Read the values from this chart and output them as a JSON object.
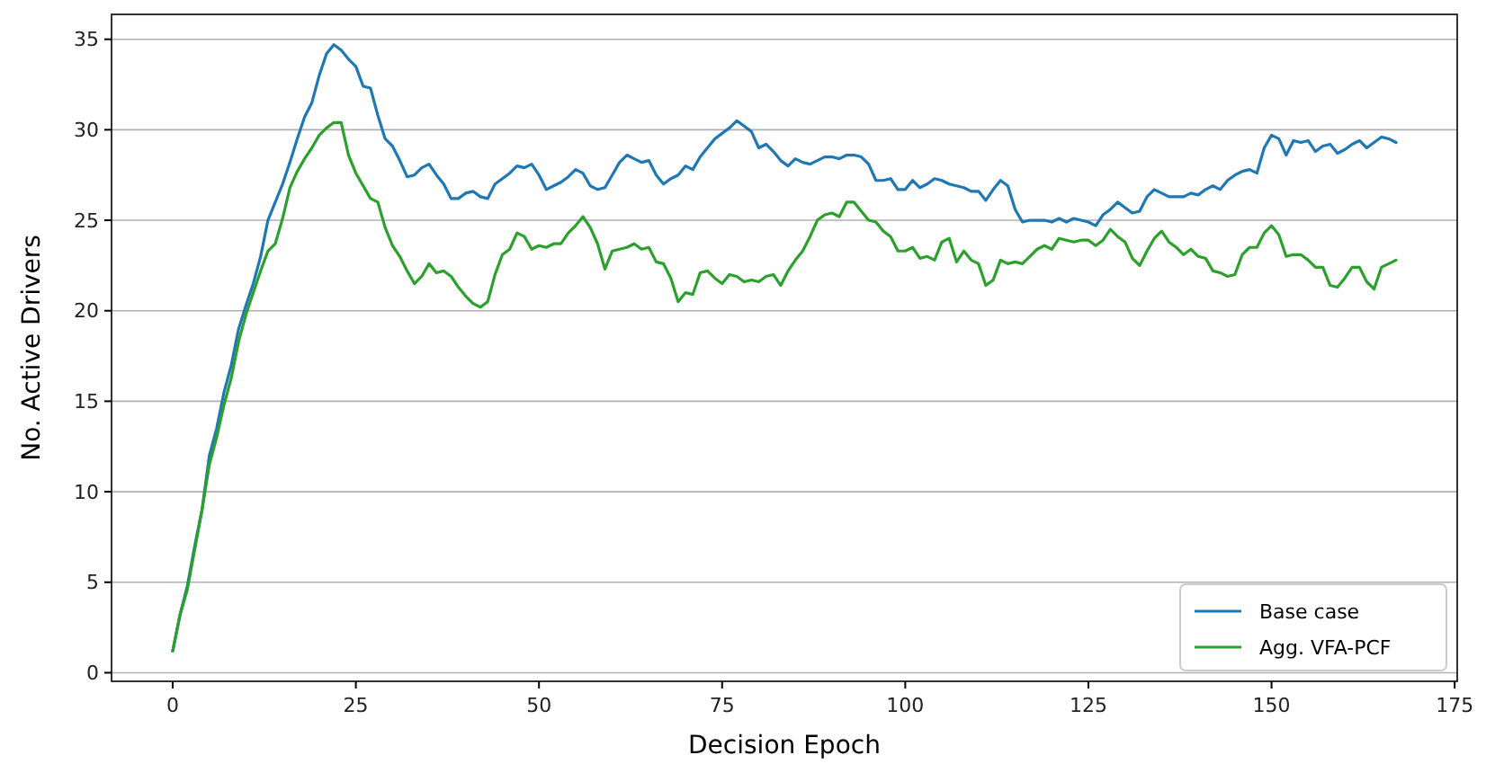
{
  "chart_data": {
    "type": "line",
    "xlabel": "Decision Epoch",
    "ylabel": "No. Active Drivers",
    "x": [
      0,
      1,
      2,
      3,
      4,
      5,
      6,
      7,
      8,
      9,
      10,
      11,
      12,
      13,
      14,
      15,
      16,
      17,
      18,
      19,
      20,
      21,
      22,
      23,
      24,
      25,
      26,
      27,
      28,
      29,
      30,
      31,
      32,
      33,
      34,
      35,
      36,
      37,
      38,
      39,
      40,
      41,
      42,
      43,
      44,
      45,
      46,
      47,
      48,
      49,
      50,
      51,
      52,
      53,
      54,
      55,
      56,
      57,
      58,
      59,
      60,
      61,
      62,
      63,
      64,
      65,
      66,
      67,
      68,
      69,
      70,
      71,
      72,
      73,
      74,
      75,
      76,
      77,
      78,
      79,
      80,
      81,
      82,
      83,
      84,
      85,
      86,
      87,
      88,
      89,
      90,
      91,
      92,
      93,
      94,
      95,
      96,
      97,
      98,
      99,
      100,
      101,
      102,
      103,
      104,
      105,
      106,
      107,
      108,
      109,
      110,
      111,
      112,
      113,
      114,
      115,
      116,
      117,
      118,
      119,
      120,
      121,
      122,
      123,
      124,
      125,
      126,
      127,
      128,
      129,
      130,
      131,
      132,
      133,
      134,
      135,
      136,
      137,
      138,
      139,
      140,
      141,
      142,
      143,
      144,
      145,
      146,
      147,
      148,
      149,
      150,
      151,
      152,
      153,
      154,
      155,
      156,
      157,
      158,
      159,
      160,
      161,
      162,
      163,
      164,
      165,
      166,
      167
    ],
    "series": [
      {
        "name": "Base case",
        "color": "#1f77b4",
        "values": [
          1.2,
          3.2,
          4.8,
          7,
          9,
          12,
          13.5,
          15.5,
          17,
          19,
          20.3,
          21.5,
          23,
          25,
          26,
          27,
          28.2,
          29.5,
          30.7,
          31.5,
          33,
          34.2,
          34.7,
          34.4,
          33.9,
          33.5,
          32.4,
          32.3,
          30.8,
          29.5,
          29.1,
          28.3,
          27.4,
          27.5,
          27.9,
          28.1,
          27.5,
          27,
          26.2,
          26.2,
          26.5,
          26.6,
          26.3,
          26.2,
          27,
          27.3,
          27.6,
          28,
          27.9,
          28.1,
          27.5,
          26.7,
          26.9,
          27.1,
          27.4,
          27.8,
          27.6,
          26.9,
          26.7,
          26.8,
          27.5,
          28.2,
          28.6,
          28.4,
          28.2,
          28.3,
          27.5,
          27,
          27.3,
          27.5,
          28,
          27.8,
          28.5,
          29,
          29.5,
          29.8,
          30.1,
          30.5,
          30.2,
          29.9,
          29,
          29.2,
          28.8,
          28.3,
          28,
          28.4,
          28.2,
          28.1,
          28.3,
          28.5,
          28.5,
          28.4,
          28.6,
          28.6,
          28.5,
          28.1,
          27.2,
          27.2,
          27.3,
          26.7,
          26.7,
          27.2,
          26.8,
          27,
          27.3,
          27.2,
          27,
          26.9,
          26.8,
          26.6,
          26.6,
          26.1,
          26.7,
          27.2,
          26.9,
          25.6,
          24.9,
          25,
          25,
          25,
          24.9,
          25.1,
          24.9,
          25.1,
          25,
          24.9,
          24.7,
          25.3,
          25.6,
          26,
          25.7,
          25.4,
          25.5,
          26.3,
          26.7,
          26.5,
          26.3,
          26.3,
          26.3,
          26.5,
          26.4,
          26.7,
          26.9,
          26.7,
          27.2,
          27.5,
          27.7,
          27.8,
          27.6,
          29,
          29.7,
          29.5,
          28.6,
          29.4,
          29.3,
          29.4,
          28.8,
          29.1,
          29.2,
          28.7,
          28.9,
          29.2,
          29.4,
          29,
          29.3,
          29.6,
          29.5,
          29.3
        ]
      },
      {
        "name": "Agg. VFA-PCF",
        "color": "#2ca02c",
        "values": [
          1.2,
          3.2,
          4.6,
          6.8,
          9,
          11.5,
          13,
          14.8,
          16.3,
          18.3,
          19.8,
          21,
          22.2,
          23.3,
          23.7,
          25.1,
          26.8,
          27.7,
          28.4,
          29,
          29.7,
          30.1,
          30.4,
          30.4,
          28.6,
          27.6,
          26.9,
          26.2,
          26,
          24.6,
          23.6,
          23,
          22.2,
          21.5,
          21.9,
          22.6,
          22.1,
          22.2,
          21.9,
          21.3,
          20.8,
          20.4,
          20.2,
          20.5,
          22,
          23.1,
          23.4,
          24.3,
          24.1,
          23.4,
          23.6,
          23.5,
          23.7,
          23.7,
          24.3,
          24.7,
          25.2,
          24.6,
          23.7,
          22.3,
          23.3,
          23.4,
          23.5,
          23.7,
          23.4,
          23.5,
          22.7,
          22.6,
          21.8,
          20.5,
          21,
          20.9,
          22.1,
          22.2,
          21.8,
          21.5,
          22,
          21.9,
          21.6,
          21.7,
          21.6,
          21.9,
          22,
          21.4,
          22.2,
          22.8,
          23.3,
          24.1,
          25,
          25.3,
          25.4,
          25.2,
          26,
          26,
          25.5,
          25,
          24.9,
          24.4,
          24.1,
          23.3,
          23.3,
          23.5,
          22.9,
          23,
          22.8,
          23.8,
          24,
          22.7,
          23.3,
          22.8,
          22.6,
          21.4,
          21.7,
          22.8,
          22.6,
          22.7,
          22.6,
          23,
          23.4,
          23.6,
          23.4,
          24,
          23.9,
          23.8,
          23.9,
          23.9,
          23.6,
          23.9,
          24.5,
          24.1,
          23.8,
          22.9,
          22.5,
          23.3,
          24,
          24.4,
          23.8,
          23.5,
          23.1,
          23.4,
          23,
          22.9,
          22.2,
          22.1,
          21.9,
          22,
          23.1,
          23.5,
          23.5,
          24.3,
          24.7,
          24.2,
          23,
          23.1,
          23.1,
          22.8,
          22.4,
          22.4,
          21.4,
          21.3,
          21.8,
          22.4,
          22.4,
          21.6,
          21.2,
          22.4,
          22.6,
          22.8
        ]
      }
    ],
    "xlim": [
      -8.35,
      175.35
    ],
    "xticks": [
      0,
      25,
      50,
      75,
      100,
      125,
      150,
      175
    ],
    "ylim": [
      -0.475,
      36.375
    ],
    "yticks": [
      0,
      5,
      10,
      15,
      20,
      25,
      30,
      35
    ],
    "grid": "y",
    "legend": "bottom right",
    "line_style": "solid",
    "marker": "none"
  }
}
